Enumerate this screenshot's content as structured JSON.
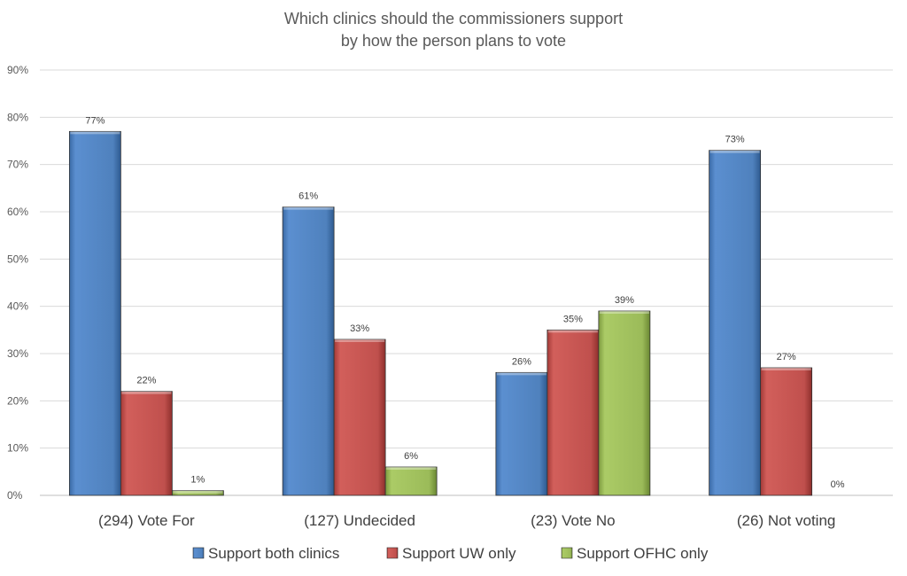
{
  "chart_data": {
    "type": "bar",
    "title": "Which clinics should the commissioners support",
    "subtitle": "by how the person plans to vote",
    "categories": [
      "(294) Vote For",
      "(127) Undecided",
      "(23) Vote No",
      "(26) Not voting"
    ],
    "series": [
      {
        "name": "Support both clinics",
        "color": "#4f81bd",
        "values": [
          77,
          61,
          26,
          73
        ],
        "labels": [
          "77%",
          "61%",
          "26%",
          "73%"
        ]
      },
      {
        "name": "Support UW only",
        "color": "#c0504d",
        "values": [
          22,
          33,
          35,
          27
        ],
        "labels": [
          "22%",
          "33%",
          "35%",
          "27%"
        ]
      },
      {
        "name": "Support OFHC only",
        "color": "#9bbb59",
        "values": [
          1,
          6,
          39,
          0
        ],
        "labels": [
          "1%",
          "6%",
          "39%",
          "0%"
        ]
      }
    ],
    "yticks": [
      "0%",
      "10%",
      "20%",
      "30%",
      "40%",
      "50%",
      "60%",
      "70%",
      "80%",
      "90%"
    ],
    "ylim": [
      0,
      90
    ],
    "grid": true,
    "legend": "bottom"
  }
}
